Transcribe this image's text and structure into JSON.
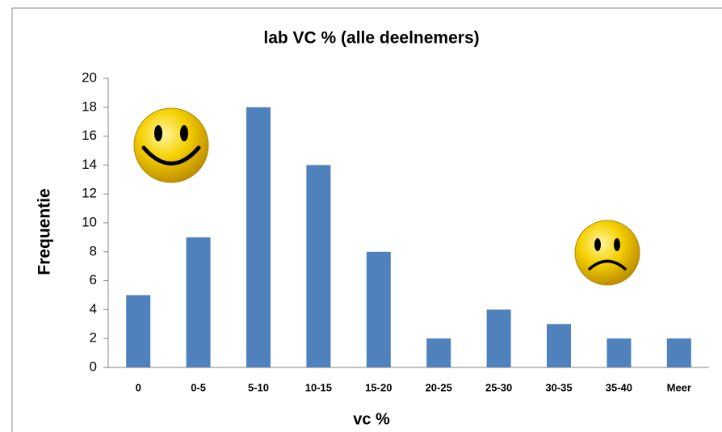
{
  "chart_data": {
    "type": "bar",
    "title": "lab VC % (alle deelnemers)",
    "x_label": "vc %",
    "y_label": "Frequentie",
    "categories": [
      "0",
      "0-5",
      "5-10",
      "10-15",
      "15-20",
      "20-25",
      "25-30",
      "30-35",
      "35-40",
      "Meer"
    ],
    "values": [
      5,
      9,
      18,
      14,
      8,
      2,
      4,
      3,
      2,
      2
    ],
    "color": "#4f81bd",
    "ylim": [
      0,
      20
    ],
    "yticks": [
      0,
      2,
      4,
      6,
      8,
      10,
      12,
      14,
      16,
      18,
      20
    ]
  }
}
